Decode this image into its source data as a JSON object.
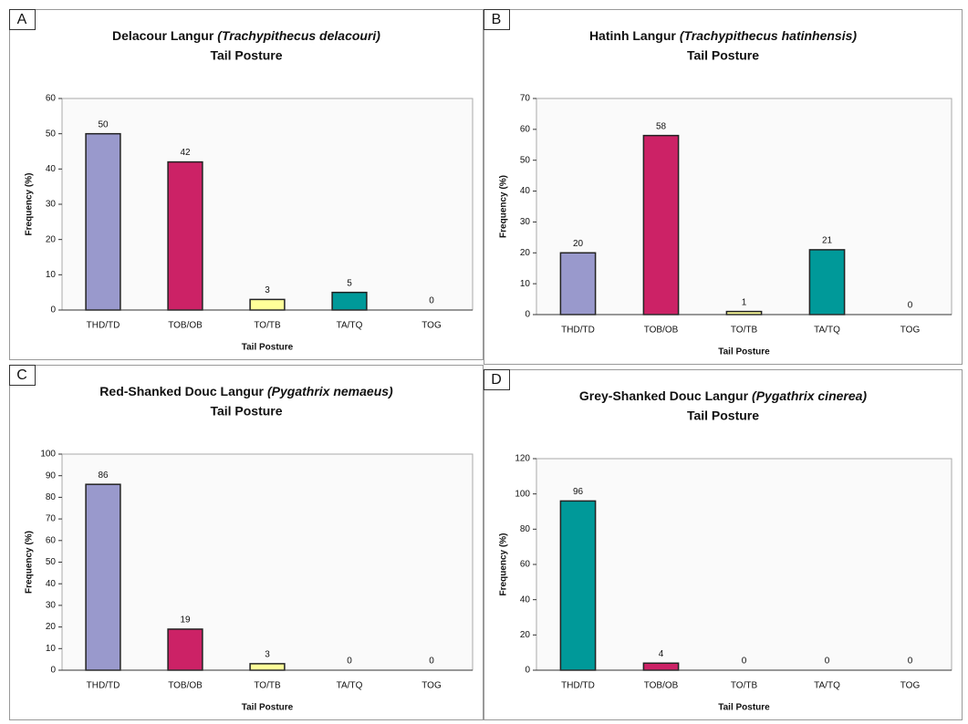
{
  "chart_data": [
    {
      "type": "bar",
      "panel": "A",
      "title": "Delacour Langur",
      "species": "(Trachypithecus delacouri)",
      "subtitle": "Tail Posture",
      "x_label": "Tail Posture",
      "y_label": "Frequency (%)",
      "categories": [
        "THD/TD",
        "TOB/OB",
        "TO/TB",
        "TA/TQ",
        "TOG"
      ],
      "values": [
        50,
        42,
        3,
        5,
        0
      ],
      "colors": [
        "#9999cc",
        "#cc2266",
        "#ffff99",
        "#009999",
        "#009999"
      ],
      "ylim": [
        0,
        60
      ],
      "yticks": [
        0,
        10,
        20,
        30,
        40,
        50,
        60
      ]
    },
    {
      "type": "bar",
      "panel": "B",
      "title": "Hatinh Langur",
      "species": "(Trachypithecus hatinhensis)",
      "subtitle": "Tail Posture",
      "x_label": "Tail Posture",
      "y_label": "Frequency (%)",
      "categories": [
        "THD/TD",
        "TOB/OB",
        "TO/TB",
        "TA/TQ",
        "TOG"
      ],
      "values": [
        20,
        58,
        1,
        21,
        0
      ],
      "colors": [
        "#9999cc",
        "#cc2266",
        "#ffff99",
        "#009999",
        "#009999"
      ],
      "ylim": [
        0,
        70
      ],
      "yticks": [
        0,
        10,
        20,
        30,
        40,
        50,
        60,
        70
      ]
    },
    {
      "type": "bar",
      "panel": "C",
      "title": "Red-Shanked Douc Langur",
      "species": "(Pygathrix nemaeus)",
      "subtitle": "Tail Posture",
      "x_label": "Tail Posture",
      "y_label": "Frequency (%)",
      "categories": [
        "THD/TD",
        "TOB/OB",
        "TO/TB",
        "TA/TQ",
        "TOG"
      ],
      "values": [
        86,
        19,
        3,
        0,
        0
      ],
      "colors": [
        "#9999cc",
        "#cc2266",
        "#ffff99",
        "#009999",
        "#009999"
      ],
      "ylim": [
        0,
        100
      ],
      "yticks": [
        0,
        10,
        20,
        30,
        40,
        50,
        60,
        70,
        80,
        90,
        100
      ]
    },
    {
      "type": "bar",
      "panel": "D",
      "title": "Grey-Shanked Douc Langur",
      "species": "(Pygathrix cinerea)",
      "subtitle": "Tail Posture",
      "x_label": "Tail Posture",
      "y_label": "Frequency (%)",
      "categories": [
        "THD/TD",
        "TOB/OB",
        "TO/TB",
        "TA/TQ",
        "TOG"
      ],
      "values": [
        96,
        4,
        0,
        0,
        0
      ],
      "colors": [
        "#009999",
        "#cc2266",
        "#ffff99",
        "#9999cc",
        "#009999"
      ],
      "ylim": [
        0,
        120
      ],
      "yticks": [
        0,
        20,
        40,
        60,
        80,
        100,
        120
      ]
    }
  ]
}
